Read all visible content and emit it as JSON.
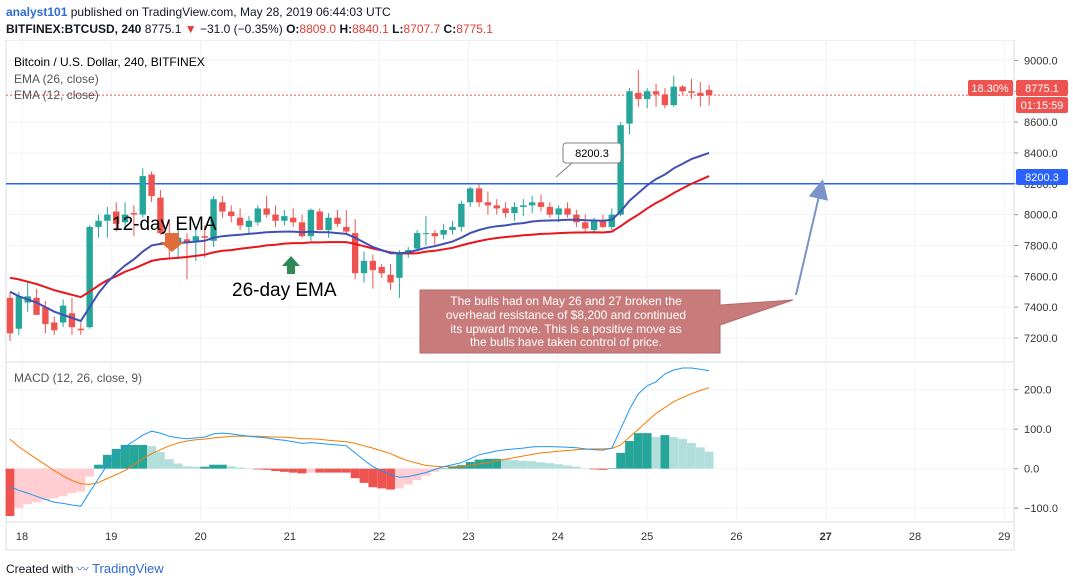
{
  "header": {
    "user": "analyst101",
    "published": "published on TradingView.com, May 28, 2019 06:44:03 UTC",
    "symbol": "BITFINEX:BTCUSD, 240",
    "last": "8775.1",
    "change": "−31.0 (−0.35%)",
    "o_label": "O:",
    "o_value": "8809.0",
    "h_label": "H:",
    "h_value": "8840.1",
    "l_label": "L:",
    "l_value": "8707.7",
    "c_label": "C:",
    "c_value": "8775.1"
  },
  "legend": {
    "title": "Bitcoin / U.S. Dollar, 240, BITFINEX",
    "ema26": "EMA (26, close)",
    "ema12": "EMA (12, close)",
    "macd": "MACD (12, 26, close, 9)"
  },
  "badges": {
    "percent": "18.30%",
    "price": "8775.1",
    "countdown": "01:15:59",
    "level": "8200.3",
    "level_callout": "8200.3"
  },
  "annotations": {
    "ema12_label": "12-day EMA",
    "ema26_label": "26-day EMA",
    "note_lines": [
      "The bulls had on May 26 and 27 broken the",
      "overhead resistance of $8,200 and continued",
      " its upward move. This is a positive move as",
      "the bulls have taken control of price."
    ]
  },
  "footer": {
    "created": "Created with",
    "brand": "TradingView"
  },
  "colors": {
    "up": "#26a69a",
    "down": "#ef5350",
    "ema12": "#3f51b5",
    "ema26": "#e8151b",
    "level": "#2962ff",
    "macd": "#2196f3",
    "signal": "#f57c00",
    "hist_up_strong": "#26a69a",
    "hist_up_weak": "#b2dfdb",
    "hist_down_strong": "#ef5350",
    "hist_down_weak": "#ffcdd2",
    "note_bg": "#c97b7b"
  },
  "chart_data": {
    "type": "candlestick",
    "x_ticks": [
      "18",
      "19",
      "20",
      "21",
      "22",
      "23",
      "24",
      "25",
      "26",
      "27",
      "28",
      "29"
    ],
    "price_ticks": [
      7200,
      7400,
      7600,
      7800,
      8000,
      8200,
      8400,
      8600,
      8800,
      9000
    ],
    "price_range": [
      7070,
      9100
    ],
    "resistance_level": 8200.3,
    "candles_ohlc": [
      [
        7460,
        7500,
        7180,
        7230
      ],
      [
        7260,
        7500,
        7220,
        7470
      ],
      [
        7430,
        7560,
        7370,
        7470
      ],
      [
        7460,
        7520,
        7350,
        7350
      ],
      [
        7400,
        7440,
        7230,
        7290
      ],
      [
        7300,
        7340,
        7220,
        7250
      ],
      [
        7300,
        7450,
        7270,
        7410
      ],
      [
        7360,
        7460,
        7220,
        7270
      ],
      [
        7260,
        7300,
        7220,
        7250
      ],
      [
        7270,
        7930,
        7260,
        7920
      ],
      [
        7920,
        8000,
        7850,
        7960
      ],
      [
        7960,
        8050,
        7850,
        8000
      ],
      [
        8020,
        8080,
        7890,
        7940
      ],
      [
        7950,
        8080,
        7900,
        8000
      ],
      [
        8010,
        8060,
        7860,
        8000
      ],
      [
        8000,
        8300,
        7980,
        8250
      ],
      [
        8260,
        8280,
        8080,
        8120
      ],
      [
        8110,
        8160,
        7870,
        7880
      ],
      [
        7880,
        7960,
        7720,
        7820
      ],
      [
        7820,
        7940,
        7710,
        7850
      ],
      [
        7840,
        7880,
        7580,
        7820
      ],
      [
        7830,
        7920,
        7700,
        7860
      ],
      [
        7860,
        7930,
        7720,
        7850
      ],
      [
        7830,
        8120,
        7790,
        8100
      ],
      [
        8080,
        8120,
        7980,
        8020
      ],
      [
        8020,
        8060,
        7950,
        7990
      ],
      [
        7980,
        8040,
        7900,
        7930
      ],
      [
        7920,
        7990,
        7870,
        7960
      ],
      [
        7950,
        8060,
        7930,
        8040
      ],
      [
        8040,
        8120,
        7980,
        8000
      ],
      [
        8000,
        8060,
        7920,
        7960
      ],
      [
        7960,
        8030,
        7930,
        7990
      ],
      [
        7980,
        8040,
        7920,
        7950
      ],
      [
        7950,
        8000,
        7850,
        7860
      ],
      [
        7860,
        8040,
        7830,
        8030
      ],
      [
        8020,
        8040,
        7900,
        7900
      ],
      [
        7900,
        8010,
        7850,
        7980
      ],
      [
        7980,
        8030,
        7920,
        7940
      ],
      [
        7920,
        8030,
        7870,
        7890
      ],
      [
        7880,
        7970,
        7580,
        7620
      ],
      [
        7620,
        7760,
        7560,
        7700
      ],
      [
        7700,
        7740,
        7520,
        7640
      ],
      [
        7660,
        7680,
        7590,
        7620
      ],
      [
        7610,
        7680,
        7510,
        7560
      ],
      [
        7590,
        7770,
        7460,
        7750
      ],
      [
        7750,
        7790,
        7720,
        7770
      ],
      [
        7780,
        7900,
        7760,
        7880
      ],
      [
        7880,
        7990,
        7800,
        7880
      ],
      [
        7880,
        7900,
        7800,
        7860
      ],
      [
        7870,
        7940,
        7840,
        7900
      ],
      [
        7900,
        7960,
        7870,
        7920
      ],
      [
        7920,
        8090,
        7890,
        8070
      ],
      [
        8080,
        8180,
        8050,
        8170
      ],
      [
        8170,
        8200,
        8050,
        8080
      ],
      [
        8080,
        8150,
        8000,
        8060
      ],
      [
        8060,
        8100,
        8000,
        8040
      ],
      [
        8040,
        8080,
        7980,
        8010
      ],
      [
        8010,
        8080,
        7960,
        8050
      ],
      [
        8050,
        8100,
        7990,
        8060
      ],
      [
        8060,
        8120,
        8010,
        8080
      ],
      [
        8080,
        8130,
        8020,
        8050
      ],
      [
        8050,
        8080,
        7980,
        8000
      ],
      [
        8000,
        8060,
        7950,
        8040
      ],
      [
        8040,
        8080,
        7980,
        8000
      ],
      [
        8000,
        8030,
        7920,
        7950
      ],
      [
        7950,
        8000,
        7880,
        7910
      ],
      [
        7900,
        7980,
        7880,
        7960
      ],
      [
        7960,
        8000,
        7910,
        7920
      ],
      [
        7920,
        8040,
        7900,
        8000
      ],
      [
        8000,
        8600,
        7990,
        8580
      ],
      [
        8590,
        8820,
        8520,
        8800
      ],
      [
        8790,
        8940,
        8700,
        8750
      ],
      [
        8750,
        8820,
        8690,
        8800
      ],
      [
        8800,
        8850,
        8700,
        8780
      ],
      [
        8780,
        8820,
        8690,
        8710
      ],
      [
        8710,
        8900,
        8700,
        8830
      ],
      [
        8830,
        8840,
        8780,
        8800
      ],
      [
        8800,
        8880,
        8750,
        8790
      ],
      [
        8790,
        8860,
        8700,
        8770
      ],
      [
        8809,
        8840.1,
        8707.7,
        8775.1
      ]
    ],
    "ema12": [
      7500,
      7470,
      7450,
      7430,
      7400,
      7370,
      7350,
      7330,
      7310,
      7400,
      7490,
      7560,
      7620,
      7670,
      7710,
      7760,
      7800,
      7810,
      7810,
      7815,
      7820,
      7825,
      7830,
      7850,
      7860,
      7865,
      7870,
      7875,
      7880,
      7885,
      7888,
      7890,
      7890,
      7885,
      7890,
      7885,
      7885,
      7880,
      7875,
      7850,
      7820,
      7790,
      7770,
      7750,
      7750,
      7755,
      7770,
      7785,
      7795,
      7810,
      7825,
      7850,
      7880,
      7900,
      7915,
      7925,
      7930,
      7940,
      7945,
      7955,
      7960,
      7962,
      7964,
      7966,
      7966,
      7963,
      7962,
      7960,
      7966,
      8020,
      8090,
      8140,
      8190,
      8230,
      8260,
      8300,
      8330,
      8360,
      8380,
      8400
    ],
    "ema26": [
      7590,
      7580,
      7565,
      7550,
      7530,
      7510,
      7495,
      7480,
      7465,
      7500,
      7540,
      7575,
      7600,
      7630,
      7650,
      7675,
      7700,
      7710,
      7715,
      7720,
      7725,
      7732,
      7740,
      7755,
      7765,
      7770,
      7778,
      7785,
      7792,
      7800,
      7805,
      7812,
      7815,
      7815,
      7820,
      7820,
      7822,
      7822,
      7822,
      7810,
      7795,
      7780,
      7768,
      7755,
      7750,
      7748,
      7750,
      7760,
      7765,
      7775,
      7785,
      7800,
      7815,
      7828,
      7840,
      7848,
      7855,
      7860,
      7866,
      7870,
      7875,
      7877,
      7880,
      7882,
      7884,
      7884,
      7885,
      7884,
      7890,
      7925,
      7965,
      8000,
      8040,
      8075,
      8105,
      8140,
      8170,
      8200,
      8225,
      8250
    ],
    "macd_ticks": [
      -100,
      0,
      100,
      200
    ],
    "macd_range": [
      -125,
      255
    ],
    "macd": [
      -45,
      -55,
      -62,
      -70,
      -78,
      -85,
      -88,
      -92,
      -95,
      -60,
      -25,
      10,
      35,
      55,
      70,
      85,
      95,
      90,
      82,
      78,
      76,
      78,
      80,
      88,
      90,
      88,
      85,
      82,
      80,
      78,
      74,
      72,
      68,
      64,
      66,
      64,
      62,
      60,
      58,
      40,
      22,
      5,
      -5,
      -15,
      -22,
      -20,
      -15,
      -10,
      -2,
      5,
      10,
      15,
      25,
      35,
      40,
      45,
      48,
      50,
      52,
      55,
      56,
      56,
      55,
      54,
      53,
      50,
      48,
      47,
      52,
      100,
      150,
      190,
      210,
      220,
      240,
      250,
      255,
      255,
      252,
      248
    ],
    "signal": [
      75,
      55,
      40,
      25,
      10,
      -5,
      -18,
      -30,
      -38,
      -40,
      -35,
      -25,
      -15,
      -5,
      10,
      25,
      38,
      48,
      58,
      65,
      70,
      73,
      75,
      78,
      80,
      82,
      82,
      82,
      82,
      81,
      80,
      80,
      78,
      76,
      76,
      74,
      72,
      70,
      68,
      64,
      58,
      52,
      45,
      38,
      28,
      20,
      14,
      8,
      6,
      5,
      5,
      6,
      8,
      12,
      15,
      20,
      24,
      28,
      32,
      36,
      40,
      42,
      44,
      46,
      48,
      49,
      50,
      50,
      51,
      60,
      80,
      100,
      120,
      140,
      155,
      170,
      180,
      190,
      198,
      205
    ],
    "histogram": [
      -120,
      -100,
      -90,
      -85,
      -80,
      -75,
      -70,
      -62,
      -58,
      -20,
      10,
      35,
      50,
      60,
      60,
      60,
      57,
      42,
      24,
      13,
      6,
      5,
      5,
      10,
      10,
      6,
      3,
      0,
      -2,
      -3,
      -6,
      -8,
      -10,
      -12,
      -10,
      -10,
      -10,
      -10,
      -10,
      -24,
      -36,
      -47,
      -50,
      -53,
      -50,
      -40,
      -29,
      -18,
      -8,
      0,
      5,
      9,
      17,
      23,
      25,
      25,
      24,
      22,
      20,
      19,
      16,
      14,
      11,
      8,
      5,
      1,
      -2,
      -3,
      1,
      40,
      70,
      90,
      90,
      80,
      85,
      80,
      75,
      65,
      54,
      43
    ]
  }
}
